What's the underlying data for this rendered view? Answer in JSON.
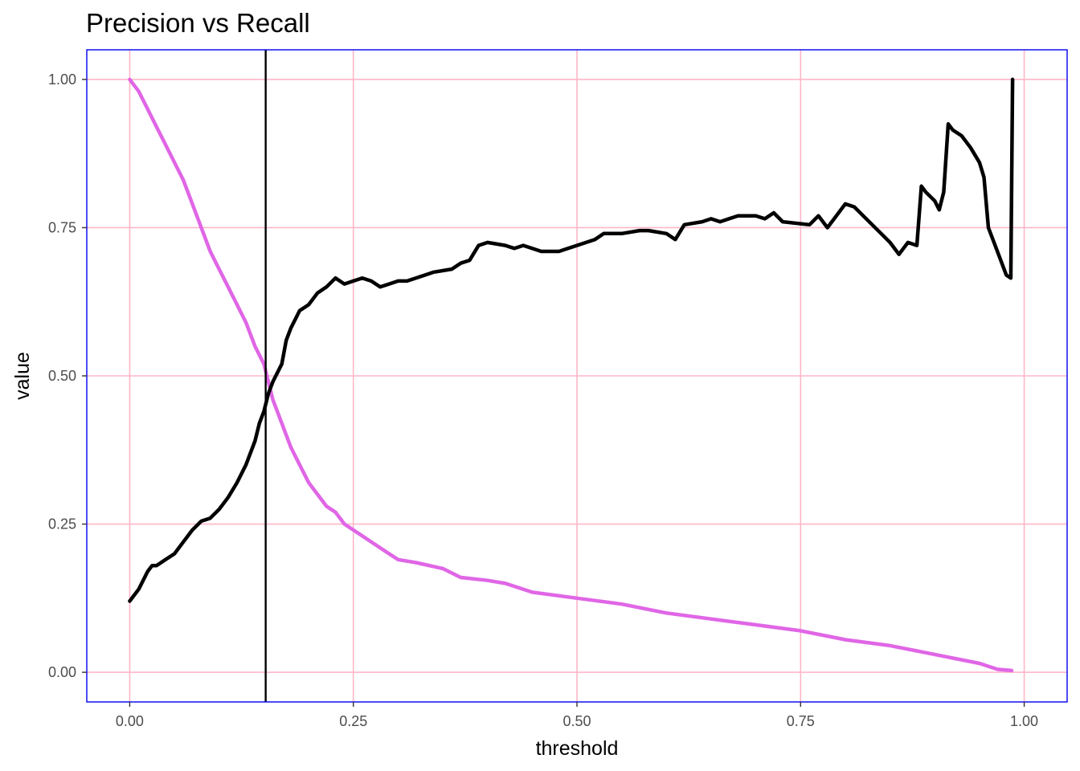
{
  "chart_data": {
    "type": "line",
    "title": "Precision vs Recall",
    "xlabel": "threshold",
    "ylabel": "value",
    "xlim": [
      -0.048,
      1.048
    ],
    "ylim": [
      -0.05,
      1.05
    ],
    "x_ticks": [
      0,
      0.25,
      0.5,
      0.75,
      1
    ],
    "x_tick_labels": [
      "0.00",
      "0.25",
      "0.50",
      "0.75",
      "1.00"
    ],
    "y_ticks": [
      0,
      0.25,
      0.5,
      0.75,
      1
    ],
    "y_tick_labels": [
      "0.00",
      "0.25",
      "0.50",
      "0.75",
      "1.00"
    ],
    "grid": true,
    "legend": "none",
    "vline_x": 0.152,
    "colors": {
      "grid": "#ffb6c8",
      "panel_border": "#0000ee",
      "series_black": "#000000",
      "series_magenta": "#e066e6",
      "vline": "#000000"
    },
    "series": [
      {
        "color": "#000000",
        "x": [
          0,
          0.01,
          0.02,
          0.025,
          0.03,
          0.04,
          0.05,
          0.06,
          0.07,
          0.08,
          0.09,
          0.1,
          0.11,
          0.12,
          0.13,
          0.14,
          0.145,
          0.15,
          0.155,
          0.16,
          0.17,
          0.175,
          0.18,
          0.19,
          0.2,
          0.21,
          0.22,
          0.23,
          0.24,
          0.25,
          0.26,
          0.27,
          0.28,
          0.29,
          0.3,
          0.31,
          0.32,
          0.33,
          0.34,
          0.36,
          0.37,
          0.38,
          0.39,
          0.4,
          0.42,
          0.43,
          0.44,
          0.46,
          0.48,
          0.49,
          0.5,
          0.52,
          0.53,
          0.55,
          0.57,
          0.58,
          0.6,
          0.61,
          0.62,
          0.64,
          0.65,
          0.66,
          0.67,
          0.68,
          0.69,
          0.7,
          0.71,
          0.72,
          0.73,
          0.76,
          0.77,
          0.78,
          0.8,
          0.81,
          0.82,
          0.84,
          0.85,
          0.86,
          0.87,
          0.88,
          0.885,
          0.89,
          0.9,
          0.905,
          0.91,
          0.915,
          0.92,
          0.93,
          0.94,
          0.95,
          0.955,
          0.96,
          0.97,
          0.98,
          0.985,
          0.987
        ],
        "y": [
          0.12,
          0.14,
          0.17,
          0.18,
          0.18,
          0.19,
          0.2,
          0.22,
          0.24,
          0.255,
          0.26,
          0.275,
          0.295,
          0.32,
          0.35,
          0.39,
          0.42,
          0.44,
          0.47,
          0.49,
          0.52,
          0.56,
          0.58,
          0.61,
          0.62,
          0.64,
          0.65,
          0.665,
          0.655,
          0.66,
          0.665,
          0.66,
          0.65,
          0.655,
          0.66,
          0.66,
          0.665,
          0.67,
          0.675,
          0.68,
          0.69,
          0.695,
          0.72,
          0.725,
          0.72,
          0.715,
          0.72,
          0.71,
          0.71,
          0.715,
          0.72,
          0.73,
          0.74,
          0.74,
          0.745,
          0.745,
          0.74,
          0.73,
          0.755,
          0.76,
          0.765,
          0.76,
          0.765,
          0.77,
          0.77,
          0.77,
          0.765,
          0.775,
          0.76,
          0.755,
          0.77,
          0.75,
          0.79,
          0.785,
          0.77,
          0.74,
          0.725,
          0.705,
          0.725,
          0.72,
          0.82,
          0.81,
          0.795,
          0.78,
          0.81,
          0.925,
          0.915,
          0.905,
          0.885,
          0.86,
          0.835,
          0.75,
          0.71,
          0.67,
          0.665,
          1.0
        ]
      },
      {
        "color": "#e066e6",
        "x": [
          0,
          0.01,
          0.02,
          0.03,
          0.04,
          0.05,
          0.06,
          0.07,
          0.08,
          0.09,
          0.1,
          0.11,
          0.12,
          0.13,
          0.14,
          0.15,
          0.155,
          0.16,
          0.17,
          0.18,
          0.19,
          0.2,
          0.21,
          0.22,
          0.23,
          0.24,
          0.25,
          0.26,
          0.27,
          0.28,
          0.29,
          0.3,
          0.32,
          0.35,
          0.37,
          0.4,
          0.42,
          0.45,
          0.5,
          0.55,
          0.6,
          0.65,
          0.7,
          0.75,
          0.8,
          0.85,
          0.9,
          0.95,
          0.97,
          0.986
        ],
        "y": [
          1.0,
          0.98,
          0.95,
          0.92,
          0.89,
          0.86,
          0.83,
          0.79,
          0.75,
          0.71,
          0.68,
          0.65,
          0.62,
          0.59,
          0.55,
          0.52,
          0.49,
          0.46,
          0.42,
          0.38,
          0.35,
          0.32,
          0.3,
          0.28,
          0.27,
          0.25,
          0.24,
          0.23,
          0.22,
          0.21,
          0.2,
          0.19,
          0.185,
          0.175,
          0.16,
          0.155,
          0.15,
          0.135,
          0.125,
          0.115,
          0.1,
          0.09,
          0.08,
          0.07,
          0.055,
          0.045,
          0.03,
          0.015,
          0.005,
          0.003
        ]
      }
    ]
  }
}
